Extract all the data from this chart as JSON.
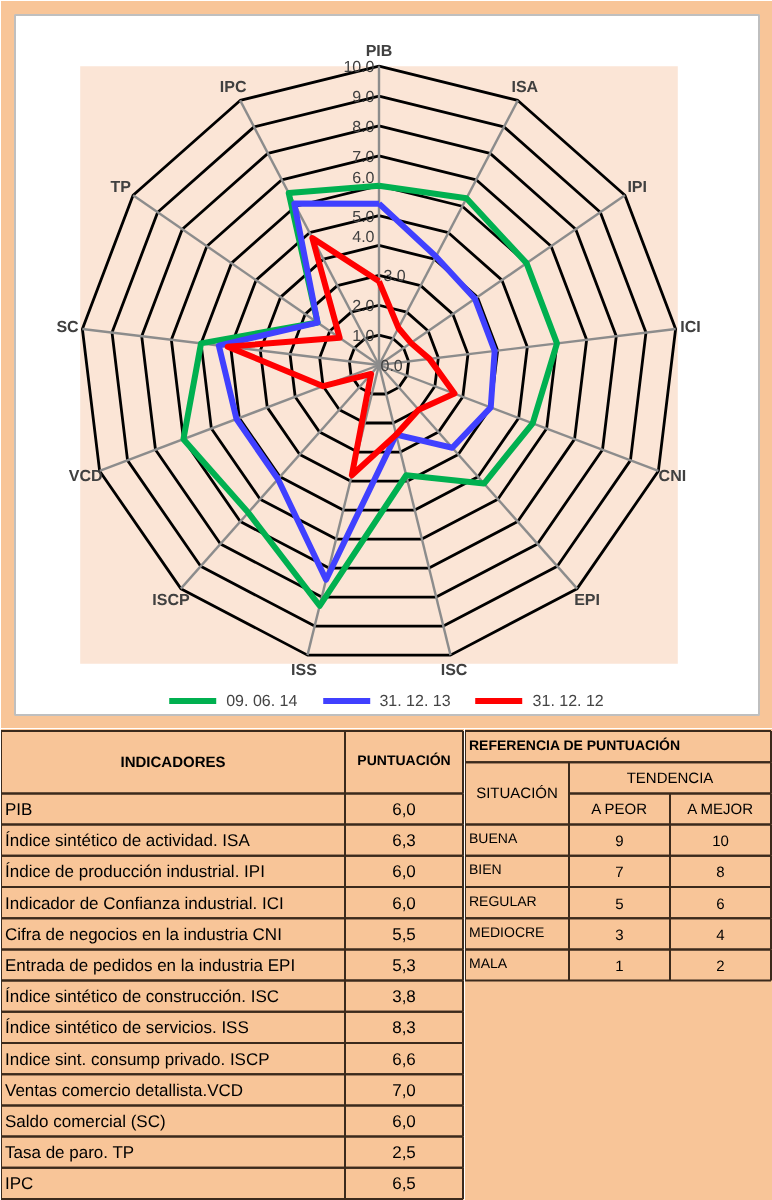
{
  "chart_data": [
    {
      "type": "radar",
      "categories": [
        "PIB",
        "ISA",
        "IPI",
        "ICI",
        "CNI",
        "EPI",
        "ISC",
        "ISS",
        "ISCP",
        "VCD",
        "SC",
        "TP",
        "IPC"
      ],
      "series": [
        {
          "name": "09. 06. 14",
          "color": "#00b050",
          "values": [
            6.0,
            6.3,
            6.0,
            6.0,
            5.5,
            5.3,
            3.8,
            8.3,
            6.6,
            7.0,
            6.0,
            2.5,
            6.5
          ]
        },
        {
          "name": "31. 12. 13",
          "color": "#4040ff",
          "values": [
            5.4,
            4.1,
            3.9,
            3.9,
            4.0,
            3.7,
            2.4,
            7.4,
            5.1,
            5.1,
            5.4,
            2.5,
            6.1
          ]
        },
        {
          "name": "31. 12. 12",
          "color": "#ff0000",
          "values": [
            2.8,
            1.4,
            1.3,
            1.7,
            2.7,
            2.0,
            2.4,
            3.8,
            0.4,
            2.0,
            5.1,
            1.6,
            4.8
          ]
        }
      ],
      "ylim": [
        0,
        10
      ],
      "yticks": [
        {
          "value": 0,
          "label": "0.0"
        },
        {
          "value": 1,
          "label": "1.0"
        },
        {
          "value": 2,
          "label": "2.0"
        },
        {
          "value": 3,
          "label": "3.0"
        },
        {
          "value": 4,
          "label": "4.0"
        },
        {
          "value": 5,
          "label": "5.0"
        },
        {
          "value": 6,
          "label": "6.0"
        },
        {
          "value": 7,
          "label": "7.0"
        },
        {
          "value": 8,
          "label": "8.0"
        },
        {
          "value": 9,
          "label": "9.0"
        },
        {
          "value": 10,
          "label": "10.0"
        }
      ],
      "grid": true,
      "legend": "bottom"
    },
    {
      "type": "heatmap",
      "ylabel": "INDICADORES",
      "categories": [
        "PUNTUACIÓN"
      ],
      "y_categories": [
        "PIB",
        "Índice sintético de actividad. ISA",
        "Índice de producción industrial. IPI",
        "Indicador de Confianza industrial. ICI",
        "Cifra de negocios en la industria CNI",
        "Entrada de pedidos en la industria EPI",
        "Índice sintético de construcción. ISC",
        "Índice sintético de servicios. ISS",
        "Indice sint. consump privado. ISCP",
        "Ventas comercio detallista.VCD",
        "Saldo comercial (SC)",
        "Tasa de paro. TP",
        "IPC"
      ],
      "cells": [
        [
          6.0
        ],
        [
          6.3
        ],
        [
          6.0
        ],
        [
          6.0
        ],
        [
          5.5
        ],
        [
          5.3
        ],
        [
          3.8
        ],
        [
          8.3
        ],
        [
          6.6
        ],
        [
          7.0
        ],
        [
          6.0
        ],
        [
          2.5
        ],
        [
          6.5
        ]
      ],
      "cell_labels": [
        [
          "6,0"
        ],
        [
          "6,3"
        ],
        [
          "6,0"
        ],
        [
          "6,0"
        ],
        [
          "5,5"
        ],
        [
          "5,3"
        ],
        [
          "3,8"
        ],
        [
          "8,3"
        ],
        [
          "6,6"
        ],
        [
          "7,0"
        ],
        [
          "6,0"
        ],
        [
          "2,5"
        ],
        [
          "6,5"
        ]
      ]
    },
    {
      "type": "heatmap",
      "title": "REFERENCIA DE PUNTUACIÓN",
      "ylabel": "SITUACIÓN",
      "xlabel": "TENDENCIA",
      "categories": [
        "A PEOR",
        "A MEJOR"
      ],
      "y_categories": [
        "BUENA",
        "BIEN",
        "REGULAR",
        "MEDIOCRE",
        "MALA"
      ],
      "cells": [
        [
          9,
          10
        ],
        [
          7,
          8
        ],
        [
          5,
          6
        ],
        [
          3,
          4
        ],
        [
          1,
          2
        ]
      ],
      "cell_labels": [
        [
          "9",
          "10"
        ],
        [
          "7",
          "8"
        ],
        [
          "5",
          "6"
        ],
        [
          "3",
          "4"
        ],
        [
          "1",
          "2"
        ]
      ]
    }
  ]
}
